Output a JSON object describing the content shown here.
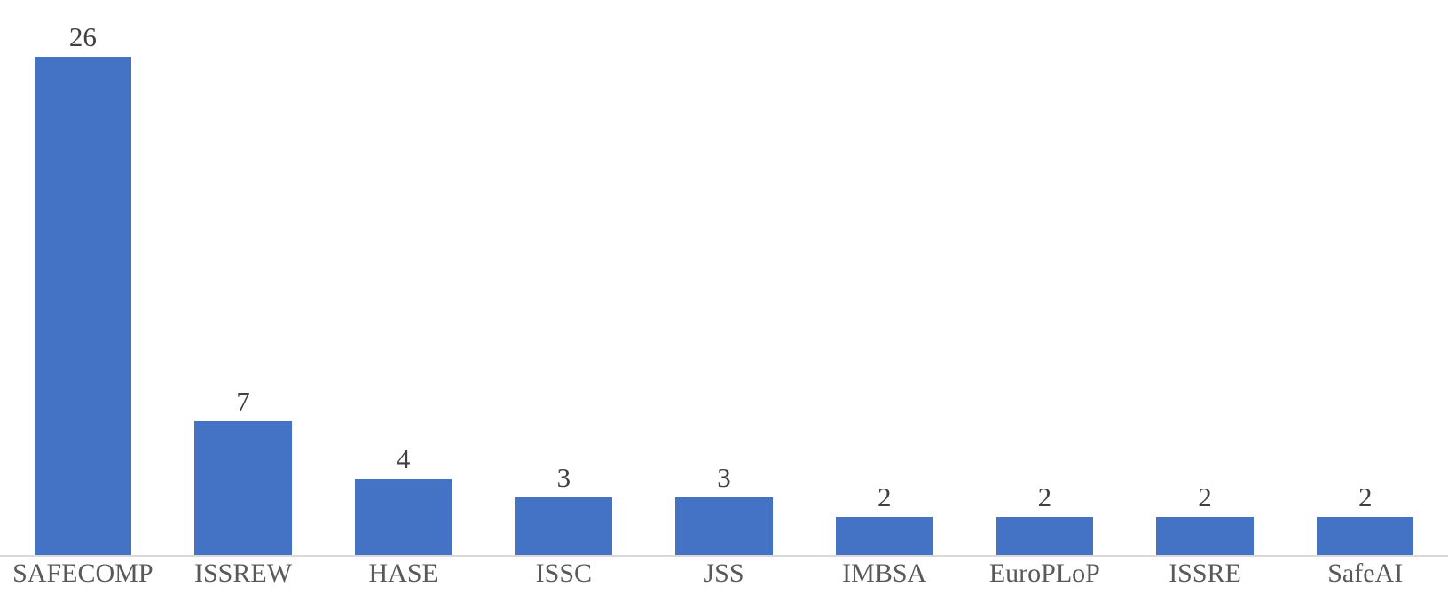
{
  "chart_data": {
    "type": "bar",
    "categories": [
      "SAFECOMP",
      "ISSREW",
      "HASE",
      "ISSC",
      "JSS",
      "IMBSA",
      "EuroPLoP",
      "ISSRE",
      "SafeAI"
    ],
    "values": [
      26,
      7,
      4,
      3,
      3,
      2,
      2,
      2,
      2
    ],
    "title": "",
    "xlabel": "",
    "ylabel": "",
    "ylim": [
      0,
      29
    ],
    "grid": false,
    "legend": false,
    "data_labels": true,
    "colors": {
      "bar": "#4472C4",
      "value_label": "#404040",
      "category_label": "#595959",
      "axis_line": "#D9D9D9",
      "background": "#FFFFFF"
    }
  }
}
